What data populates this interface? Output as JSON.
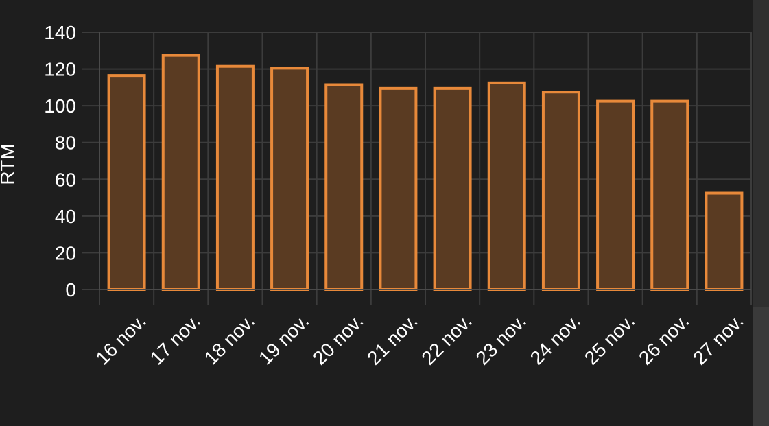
{
  "chart_data": {
    "type": "bar",
    "title": "",
    "xlabel": "",
    "ylabel": "RTM",
    "categories": [
      "16 nov.",
      "17 nov.",
      "18 nov.",
      "19 nov.",
      "20 nov.",
      "21 nov.",
      "22 nov.",
      "23 nov.",
      "24 nov.",
      "25 nov.",
      "26 nov.",
      "27 nov."
    ],
    "values": [
      117,
      128,
      122,
      121,
      112,
      110,
      110,
      113,
      108,
      103,
      103,
      53
    ],
    "ylim": [
      0,
      140
    ],
    "yticks": [
      0,
      20,
      40,
      60,
      80,
      100,
      120,
      140
    ],
    "grid": true,
    "colors": {
      "bar_fill": "#5a3b22",
      "bar_stroke": "#e8893a",
      "grid": "#3c3c3c",
      "background": "#1e1e1e",
      "text": "#ffffff"
    }
  }
}
